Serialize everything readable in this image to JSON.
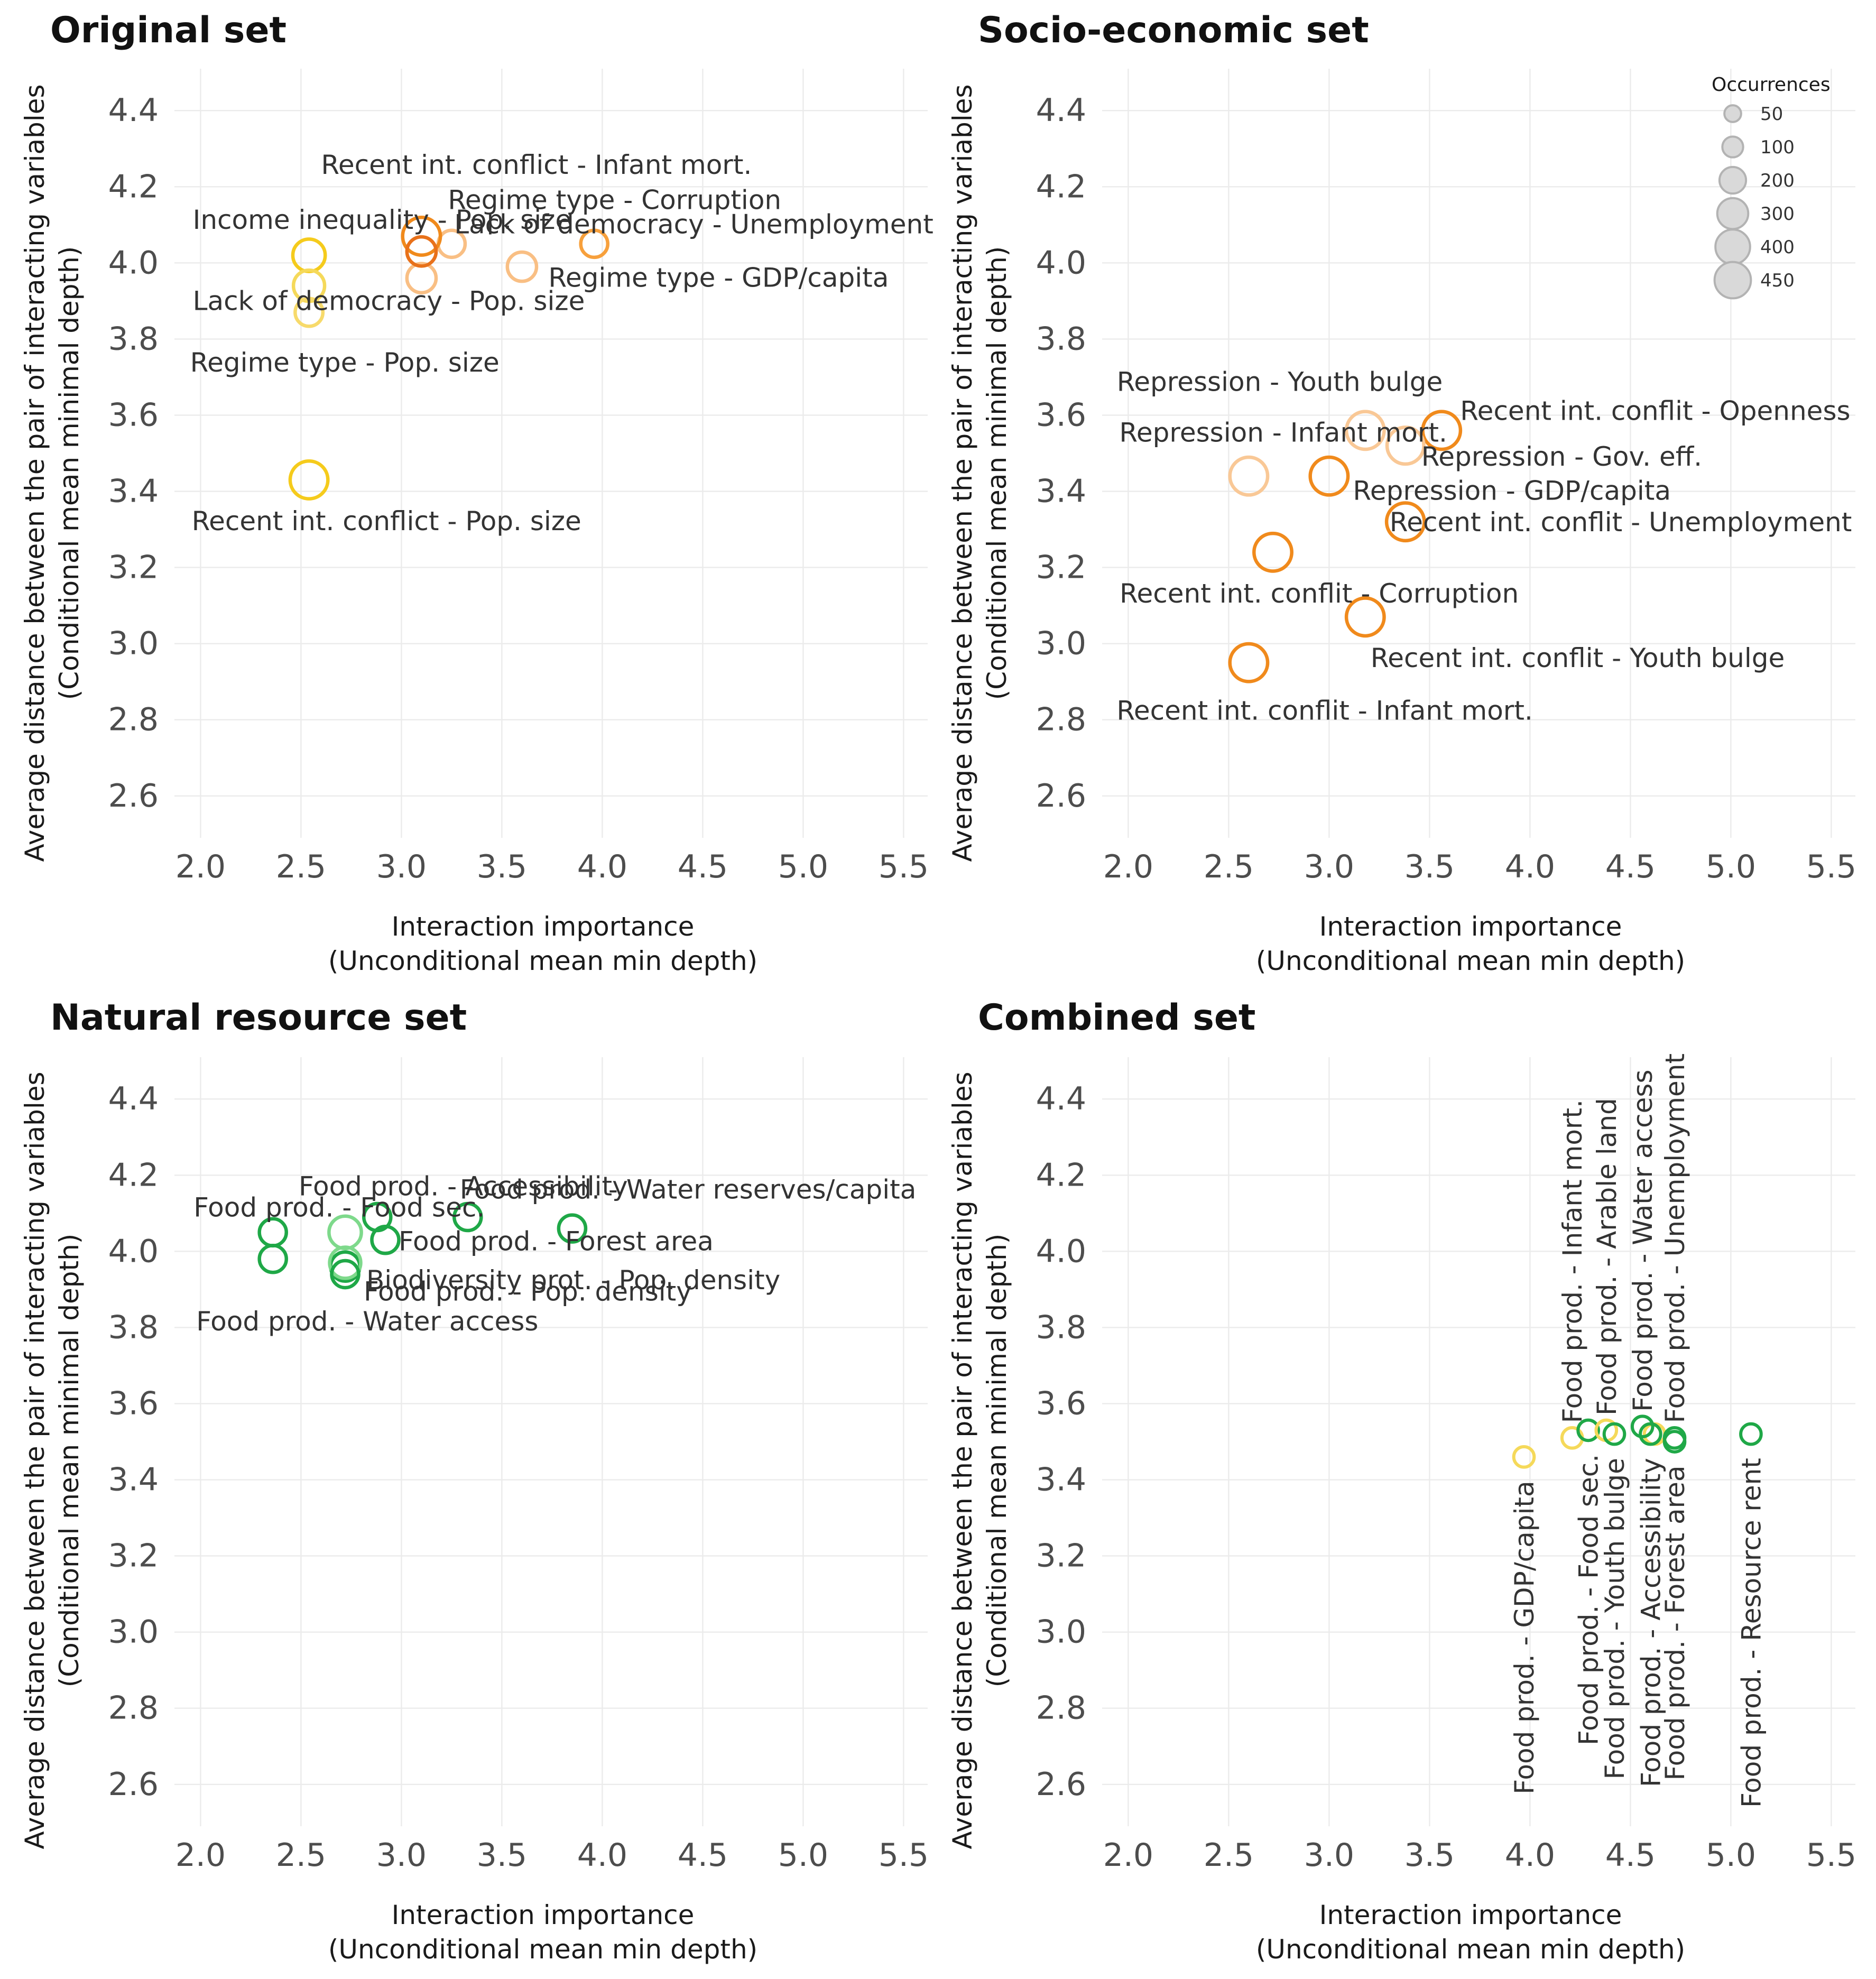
{
  "chart_data": [
    {
      "type": "scatter",
      "title": "Original set",
      "xlabel": "Interaction importance",
      "xlabel2": "(Unconditional mean min depth)",
      "ylabel": "Average distance between the pair of interacting variables",
      "ylabel2": "(Conditional mean minimal depth)",
      "xlim": [
        1.87,
        5.62
      ],
      "ylim": [
        2.49,
        4.51
      ],
      "xticks": [
        "2.0",
        "2.5",
        "3.0",
        "3.5",
        "4.0",
        "4.5",
        "5.0",
        "5.5"
      ],
      "yticks": [
        "2.6",
        "2.8",
        "3.0",
        "3.2",
        "3.4",
        "3.6",
        "3.8",
        "4.0",
        "4.2",
        "4.4"
      ],
      "grid": true,
      "points": [
        {
          "label": "Recent int. conflict - Infant mort.",
          "x": 3.1,
          "y": 4.07,
          "occ": 300,
          "color": "#F08A1C"
        },
        {
          "label": "Regime type - Corruption",
          "x": 3.1,
          "y": 4.03,
          "occ": 150,
          "color": "#E8711A"
        },
        {
          "label": "Income inequality - Pop. size",
          "x": 2.54,
          "y": 4.02,
          "occ": 200,
          "color": "#F5CB1C"
        },
        {
          "label": "Lack of democracy - Unemployment",
          "x": 3.96,
          "y": 4.05,
          "occ": 120,
          "color": "#F7A03C"
        },
        {
          "label": "Regime type - GDP/capita",
          "x": 3.6,
          "y": 3.99,
          "occ": 150,
          "color": "#F9BF84"
        },
        {
          "label": "Lack of democracy - Pop. size",
          "x": 2.54,
          "y": 3.94,
          "occ": 180,
          "color": "#F5D95A"
        },
        {
          "label": "Regime type - Pop. size",
          "x": 2.54,
          "y": 3.87,
          "occ": 130,
          "color": "#F7DA6B"
        },
        {
          "label": "Recent int. conflict - Pop. size",
          "x": 2.54,
          "y": 3.43,
          "occ": 300,
          "color": "#F5CB1C"
        }
      ],
      "extra_points": [
        {
          "x": 3.25,
          "y": 4.05,
          "occ": 120,
          "color": "#F9BF84"
        },
        {
          "x": 3.1,
          "y": 3.96,
          "occ": 150,
          "color": "#F9BF84"
        }
      ]
    },
    {
      "type": "scatter",
      "title": "Socio-economic set",
      "xlabel": "Interaction importance",
      "xlabel2": "(Unconditional mean min depth)",
      "ylabel": "Average distance between the pair of interacting variables",
      "ylabel2": "(Conditional mean minimal depth)",
      "xlim": [
        1.87,
        5.62
      ],
      "ylim": [
        2.49,
        4.51
      ],
      "xticks": [
        "2.0",
        "2.5",
        "3.0",
        "3.5",
        "4.0",
        "4.5",
        "5.0",
        "5.5"
      ],
      "yticks": [
        "2.6",
        "2.8",
        "3.0",
        "3.2",
        "3.4",
        "3.6",
        "3.8",
        "4.0",
        "4.2",
        "4.4"
      ],
      "grid": true,
      "legend": {
        "title": "Occurrences",
        "position": "top-right",
        "entries": [
          {
            "label": "50",
            "occ": 50
          },
          {
            "label": "100",
            "occ": 100
          },
          {
            "label": "200",
            "occ": 200
          },
          {
            "label": "300",
            "occ": 300
          },
          {
            "label": "400",
            "occ": 400
          },
          {
            "label": "450",
            "occ": 450
          }
        ]
      },
      "points": [
        {
          "label": "Repression - Youth bulge",
          "x": 3.18,
          "y": 3.56,
          "occ": 300,
          "color": "#F9C896"
        },
        {
          "label": "Recent int. conflit - Openness",
          "x": 3.56,
          "y": 3.56,
          "occ": 300,
          "color": "#F08A1C"
        },
        {
          "label": "Repression - Infant mort.",
          "x": 2.6,
          "y": 3.44,
          "occ": 300,
          "color": "#F9C896"
        },
        {
          "label": "Repression - Gov. eff.",
          "x": 3.38,
          "y": 3.52,
          "occ": 280,
          "color": "#F9C896"
        },
        {
          "label": "Repression - GDP/capita",
          "x": 3.0,
          "y": 3.44,
          "occ": 300,
          "color": "#F08A1C"
        },
        {
          "label": "Recent int. conflit - Unemployment",
          "x": 3.38,
          "y": 3.32,
          "occ": 300,
          "color": "#F08A1C"
        },
        {
          "label": "Recent int. conflit - Corruption",
          "x": 2.72,
          "y": 3.24,
          "occ": 300,
          "color": "#F08A1C"
        },
        {
          "label": "Recent int. conflit - Youth bulge",
          "x": 3.18,
          "y": 3.07,
          "occ": 300,
          "color": "#F08A1C"
        },
        {
          "label": "Recent int. conflit - Infant mort.",
          "x": 2.6,
          "y": 2.95,
          "occ": 300,
          "color": "#F08A1C"
        }
      ]
    },
    {
      "type": "scatter",
      "title": "Natural resource set",
      "xlabel": "Interaction importance",
      "xlabel2": "(Unconditional mean min depth)",
      "ylabel": "Average distance between the pair of interacting variables",
      "ylabel2": "(Conditional mean minimal depth)",
      "xlim": [
        1.87,
        5.62
      ],
      "ylim": [
        2.49,
        4.51
      ],
      "xticks": [
        "2.0",
        "2.5",
        "3.0",
        "3.5",
        "4.0",
        "4.5",
        "5.0",
        "5.5"
      ],
      "yticks": [
        "2.6",
        "2.8",
        "3.0",
        "3.2",
        "3.4",
        "3.6",
        "3.8",
        "4.0",
        "4.2",
        "4.4"
      ],
      "grid": true,
      "points": [
        {
          "label": "Food prod. - Accessibility",
          "x": 2.72,
          "y": 4.05,
          "occ": 200,
          "color": "#7ED98B"
        },
        {
          "label": "Food prod. - Water reserves/capita",
          "x": 3.33,
          "y": 4.09,
          "occ": 120,
          "color": "#1FA847"
        },
        {
          "label": "Food prod. - Food sec.",
          "x": 2.36,
          "y": 4.05,
          "occ": 120,
          "color": "#1FA847"
        },
        {
          "label": "Food prod. - Forest area",
          "x": 2.92,
          "y": 4.03,
          "occ": 120,
          "color": "#1FA847"
        },
        {
          "label": "Biodiversity prot. - Pop. density",
          "x": 2.72,
          "y": 3.97,
          "occ": 180,
          "color": "#7ED98B"
        },
        {
          "label": "Food prod. - Pop. density",
          "x": 2.72,
          "y": 3.94,
          "occ": 120,
          "color": "#1FA847"
        },
        {
          "label": "Food prod. - Water access",
          "x": 2.36,
          "y": 3.98,
          "occ": 120,
          "color": "#1FA847"
        }
      ],
      "extra_points": [
        {
          "x": 2.88,
          "y": 4.09,
          "occ": 120,
          "color": "#1FA847"
        },
        {
          "x": 3.85,
          "y": 4.06,
          "occ": 120,
          "color": "#1FA847"
        },
        {
          "x": 2.72,
          "y": 3.96,
          "occ": 150,
          "color": "#1FA847"
        }
      ]
    },
    {
      "type": "scatter",
      "title": "Combined set",
      "xlabel": "Interaction importance",
      "xlabel2": "(Unconditional mean min depth)",
      "ylabel": "Average distance between the pair of interacting variables",
      "ylabel2": "(Conditional mean minimal depth)",
      "xlim": [
        1.87,
        5.62
      ],
      "ylim": [
        2.49,
        4.51
      ],
      "xticks": [
        "2.0",
        "2.5",
        "3.0",
        "3.5",
        "4.0",
        "4.5",
        "5.0",
        "5.5"
      ],
      "yticks": [
        "2.6",
        "2.8",
        "3.0",
        "3.2",
        "3.4",
        "3.6",
        "3.8",
        "4.0",
        "4.2",
        "4.4"
      ],
      "grid": true,
      "label_rotation": "vertical",
      "points": [
        {
          "label": "Food prod. - GDP/capita",
          "x": 3.97,
          "y": 3.46,
          "occ": 50,
          "color": "#F5D95A",
          "label_anchor": "below"
        },
        {
          "label": "Food prod. - Infant mort.",
          "x": 4.21,
          "y": 3.51,
          "occ": 50,
          "color": "#F5D95A",
          "label_anchor": "above"
        },
        {
          "label": "Food prod. - Food sec.",
          "x": 4.29,
          "y": 3.53,
          "occ": 50,
          "color": "#1FA847",
          "label_anchor": "below"
        },
        {
          "label": "Food prod. - Arable land",
          "x": 4.38,
          "y": 3.53,
          "occ": 50,
          "color": "#F5D95A",
          "label_anchor": "above"
        },
        {
          "label": "Food prod. - Youth bulge",
          "x": 4.42,
          "y": 3.52,
          "occ": 50,
          "color": "#1FA847",
          "label_anchor": "below"
        },
        {
          "label": "Food prod. - Water access",
          "x": 4.56,
          "y": 3.54,
          "occ": 50,
          "color": "#1FA847",
          "label_anchor": "above"
        },
        {
          "label": "Food prod. - Accessibility",
          "x": 4.6,
          "y": 3.52,
          "occ": 50,
          "color": "#1FA847",
          "label_anchor": "below"
        },
        {
          "label": "Food prod. - Unemployment",
          "x": 4.72,
          "y": 3.51,
          "occ": 50,
          "color": "#1FA847",
          "label_anchor": "above"
        },
        {
          "label": "Food prod. - Forest area",
          "x": 4.72,
          "y": 3.5,
          "occ": 50,
          "color": "#1FA847",
          "label_anchor": "below"
        },
        {
          "label": "Food prod. - Resource rent",
          "x": 5.1,
          "y": 3.52,
          "occ": 50,
          "color": "#1FA847",
          "label_anchor": "below"
        }
      ],
      "extra_points": [
        {
          "x": 4.62,
          "y": 3.52,
          "occ": 50,
          "color": "#F5D95A"
        }
      ]
    }
  ]
}
